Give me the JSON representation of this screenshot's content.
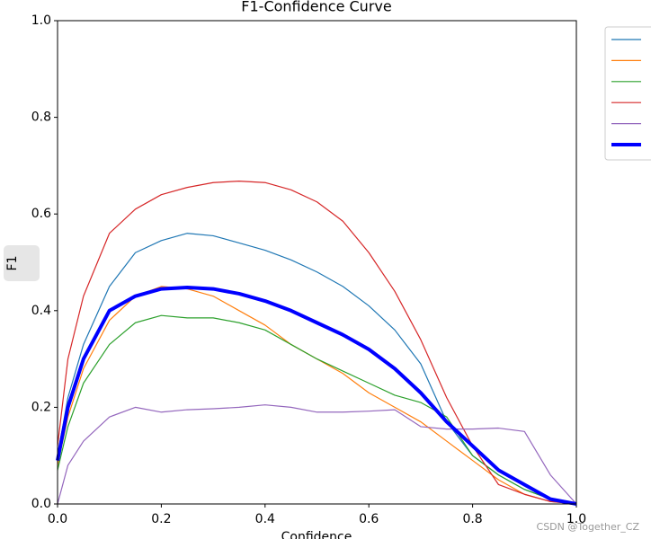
{
  "chart_data": {
    "type": "line",
    "title": "F1-Confidence Curve",
    "xlabel": "Confidence",
    "ylabel": "F1",
    "watermark": "CSDN @Together_CZ",
    "x": [
      0,
      0.02,
      0.05,
      0.1,
      0.15,
      0.2,
      0.25,
      0.3,
      0.35,
      0.4,
      0.45,
      0.5,
      0.55,
      0.6,
      0.65,
      0.7,
      0.75,
      0.8,
      0.85,
      0.9,
      0.95,
      1.0
    ],
    "series": [
      {
        "color": "#1f77b4",
        "width": 1.2,
        "values": [
          0.1,
          0.22,
          0.33,
          0.45,
          0.52,
          0.545,
          0.56,
          0.555,
          0.54,
          0.525,
          0.505,
          0.48,
          0.45,
          0.41,
          0.36,
          0.29,
          0.17,
          0.1,
          0.06,
          0.03,
          0.01,
          0
        ]
      },
      {
        "color": "#ff7f0e",
        "width": 1.2,
        "values": [
          0.08,
          0.18,
          0.28,
          0.38,
          0.43,
          0.45,
          0.445,
          0.43,
          0.4,
          0.37,
          0.33,
          0.3,
          0.27,
          0.23,
          0.2,
          0.17,
          0.13,
          0.09,
          0.05,
          0.02,
          0.005,
          0
        ]
      },
      {
        "color": "#2ca02c",
        "width": 1.2,
        "values": [
          0.07,
          0.16,
          0.25,
          0.33,
          0.375,
          0.39,
          0.385,
          0.385,
          0.375,
          0.36,
          0.33,
          0.3,
          0.275,
          0.25,
          0.225,
          0.21,
          0.18,
          0.1,
          0.06,
          0.03,
          0.01,
          0
        ]
      },
      {
        "color": "#d62728",
        "width": 1.2,
        "values": [
          0.12,
          0.3,
          0.43,
          0.56,
          0.61,
          0.64,
          0.655,
          0.665,
          0.668,
          0.665,
          0.65,
          0.625,
          0.585,
          0.52,
          0.44,
          0.34,
          0.22,
          0.12,
          0.04,
          0.02,
          0.005,
          0
        ]
      },
      {
        "color": "#9467bd",
        "width": 1.2,
        "values": [
          0,
          0.08,
          0.13,
          0.18,
          0.2,
          0.19,
          0.195,
          0.197,
          0.2,
          0.205,
          0.2,
          0.19,
          0.19,
          0.192,
          0.195,
          0.16,
          0.155,
          0.155,
          0.157,
          0.15,
          0.06,
          0
        ]
      },
      {
        "color": "#0000ff",
        "width": 4,
        "values": [
          0.09,
          0.2,
          0.3,
          0.4,
          0.43,
          0.445,
          0.448,
          0.445,
          0.435,
          0.42,
          0.4,
          0.375,
          0.35,
          0.32,
          0.28,
          0.23,
          0.17,
          0.12,
          0.07,
          0.04,
          0.01,
          0
        ]
      }
    ],
    "xlim": [
      0,
      1
    ],
    "ylim": [
      0,
      1
    ],
    "xticks": [
      {
        "value": 0,
        "label": "0.0"
      },
      0.2,
      0.4,
      0.6,
      0.8,
      {
        "value": 1,
        "label": "1.0"
      }
    ],
    "yticks": [
      {
        "value": 0,
        "label": "0.0"
      },
      0.2,
      0.4,
      0.6,
      0.8,
      {
        "value": 1,
        "label": "1.0"
      }
    ],
    "legend": "upper right outside"
  }
}
